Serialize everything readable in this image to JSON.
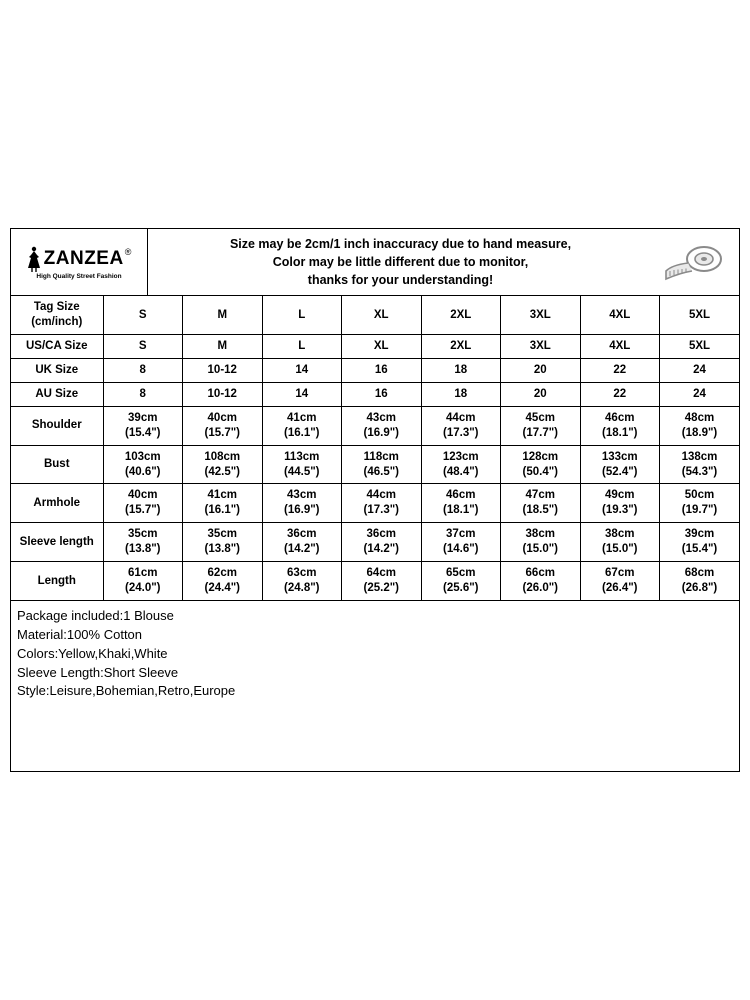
{
  "brand": {
    "name": "ZANZEA",
    "registered": "®",
    "tagline": "High Quality Street Fashion"
  },
  "header_note": {
    "line1": "Size may be 2cm/1 inch inaccuracy due to hand measure,",
    "line2": "Color may be little different due to monitor,",
    "line3": "thanks for your understanding!"
  },
  "colors": {
    "background": "#ffffff",
    "border": "#000000",
    "text": "#000000",
    "tape_stroke": "#8a8a8a",
    "tape_fill": "#e9e9e9"
  },
  "table": {
    "first_header_a": "Tag Size",
    "first_header_b": "(cm/inch)",
    "sizes": [
      "S",
      "M",
      "L",
      "XL",
      "2XL",
      "3XL",
      "4XL",
      "5XL"
    ],
    "simple_rows": [
      {
        "label": "US/CA Size",
        "values": [
          "S",
          "M",
          "L",
          "XL",
          "2XL",
          "3XL",
          "4XL",
          "5XL"
        ]
      },
      {
        "label": "UK Size",
        "values": [
          "8",
          "10-12",
          "14",
          "16",
          "18",
          "20",
          "22",
          "24"
        ]
      },
      {
        "label": "AU Size",
        "values": [
          "8",
          "10-12",
          "14",
          "16",
          "18",
          "20",
          "22",
          "24"
        ]
      }
    ],
    "measure_rows": [
      {
        "label": "Shoulder",
        "values": [
          {
            "cm": "39cm",
            "in": "(15.4\")"
          },
          {
            "cm": "40cm",
            "in": "(15.7\")"
          },
          {
            "cm": "41cm",
            "in": "(16.1\")"
          },
          {
            "cm": "43cm",
            "in": "(16.9\")"
          },
          {
            "cm": "44cm",
            "in": "(17.3\")"
          },
          {
            "cm": "45cm",
            "in": "(17.7\")"
          },
          {
            "cm": "46cm",
            "in": "(18.1\")"
          },
          {
            "cm": "48cm",
            "in": "(18.9\")"
          }
        ]
      },
      {
        "label": "Bust",
        "values": [
          {
            "cm": "103cm",
            "in": "(40.6\")"
          },
          {
            "cm": "108cm",
            "in": "(42.5\")"
          },
          {
            "cm": "113cm",
            "in": "(44.5\")"
          },
          {
            "cm": "118cm",
            "in": "(46.5\")"
          },
          {
            "cm": "123cm",
            "in": "(48.4\")"
          },
          {
            "cm": "128cm",
            "in": "(50.4\")"
          },
          {
            "cm": "133cm",
            "in": "(52.4\")"
          },
          {
            "cm": "138cm",
            "in": "(54.3\")"
          }
        ]
      },
      {
        "label": "Armhole",
        "values": [
          {
            "cm": "40cm",
            "in": "(15.7\")"
          },
          {
            "cm": "41cm",
            "in": "(16.1\")"
          },
          {
            "cm": "43cm",
            "in": "(16.9\")"
          },
          {
            "cm": "44cm",
            "in": "(17.3\")"
          },
          {
            "cm": "46cm",
            "in": "(18.1\")"
          },
          {
            "cm": "47cm",
            "in": "(18.5\")"
          },
          {
            "cm": "49cm",
            "in": "(19.3\")"
          },
          {
            "cm": "50cm",
            "in": "(19.7\")"
          }
        ]
      },
      {
        "label": "Sleeve length",
        "values": [
          {
            "cm": "35cm",
            "in": "(13.8\")"
          },
          {
            "cm": "35cm",
            "in": "(13.8\")"
          },
          {
            "cm": "36cm",
            "in": "(14.2\")"
          },
          {
            "cm": "36cm",
            "in": "(14.2\")"
          },
          {
            "cm": "37cm",
            "in": "(14.6\")"
          },
          {
            "cm": "38cm",
            "in": "(15.0\")"
          },
          {
            "cm": "38cm",
            "in": "(15.0\")"
          },
          {
            "cm": "39cm",
            "in": "(15.4\")"
          }
        ]
      },
      {
        "label": "Length",
        "values": [
          {
            "cm": "61cm",
            "in": "(24.0\")"
          },
          {
            "cm": "62cm",
            "in": "(24.4\")"
          },
          {
            "cm": "63cm",
            "in": "(24.8\")"
          },
          {
            "cm": "64cm",
            "in": "(25.2\")"
          },
          {
            "cm": "65cm",
            "in": "(25.6\")"
          },
          {
            "cm": "66cm",
            "in": "(26.0\")"
          },
          {
            "cm": "67cm",
            "in": "(26.4\")"
          },
          {
            "cm": "68cm",
            "in": "(26.8\")"
          }
        ]
      }
    ]
  },
  "notes": [
    "Package included:1 Blouse",
    "Material:100% Cotton",
    "Colors:Yellow,Khaki,White",
    "Sleeve Length:Short Sleeve",
    "Style:Leisure,Bohemian,Retro,Europe"
  ]
}
